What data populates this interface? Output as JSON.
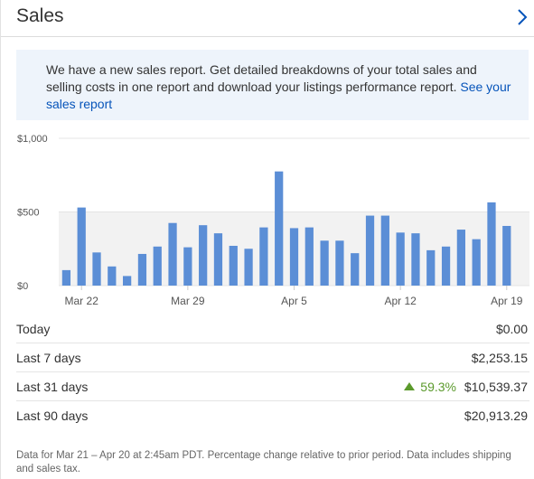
{
  "header": {
    "title": "Sales"
  },
  "banner": {
    "text": "We have a new sales report. Get detailed breakdowns of your total sales and selling costs in one report and download your listings performance report.",
    "link": "See your sales report"
  },
  "chart_data": {
    "type": "bar",
    "ylim": [
      0,
      1000
    ],
    "y_ticks": [
      "$1,000",
      "$500",
      "$0"
    ],
    "x_tick_labels": [
      "Mar 22",
      "Mar 29",
      "Apr 5",
      "Apr 12",
      "Apr 19"
    ],
    "categories": [
      "Mar 21",
      "Mar 22",
      "Mar 23",
      "Mar 24",
      "Mar 25",
      "Mar 26",
      "Mar 27",
      "Mar 28",
      "Mar 29",
      "Mar 30",
      "Mar 31",
      "Apr 1",
      "Apr 2",
      "Apr 3",
      "Apr 4",
      "Apr 5",
      "Apr 6",
      "Apr 7",
      "Apr 8",
      "Apr 9",
      "Apr 10",
      "Apr 11",
      "Apr 12",
      "Apr 13",
      "Apr 14",
      "Apr 15",
      "Apr 16",
      "Apr 17",
      "Apr 18",
      "Apr 19",
      "Apr 20"
    ],
    "values": [
      105,
      530,
      225,
      130,
      65,
      215,
      265,
      425,
      260,
      410,
      355,
      270,
      250,
      395,
      775,
      390,
      395,
      305,
      305,
      220,
      475,
      475,
      360,
      355,
      240,
      265,
      380,
      315,
      565,
      405,
      0
    ],
    "colors": {
      "bar": "#5b8ed6",
      "band": "#f2f2f2"
    },
    "grid": true
  },
  "stats": [
    {
      "label": "Today",
      "value": "$0.00"
    },
    {
      "label": "Last 7 days",
      "value": "$2,253.15"
    },
    {
      "label": "Last 31 days",
      "value": "$10,539.37",
      "change": "59.3%"
    },
    {
      "label": "Last 90 days",
      "value": "$20,913.29"
    }
  ],
  "footer": "Data for Mar 21 – Apr 20 at 2:45am PDT. Percentage change relative to prior period. Data includes shipping and sales tax.",
  "icons": {
    "chevron": "chevron-right-icon",
    "change": "up-triangle-icon"
  }
}
